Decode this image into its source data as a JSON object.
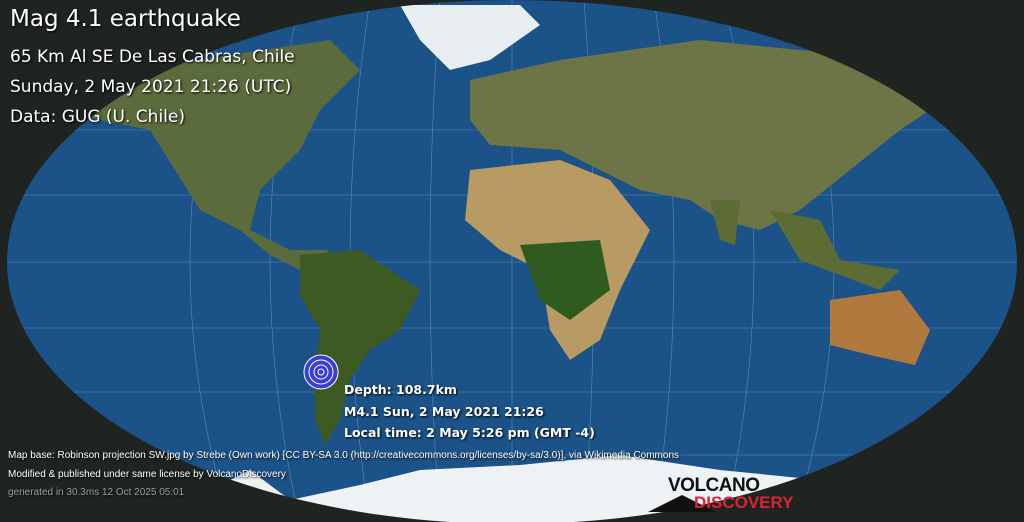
{
  "header": {
    "title": "Mag 4.1 earthquake",
    "location": "65 Km Al SE De Las Cabras, Chile",
    "datetime": "Sunday,  2 May 2021 21:26 (UTC)",
    "data_source": "Data: GUG (U. Chile)"
  },
  "marker": {
    "depth": "Depth: 108.7km",
    "magnitude_time": "M4.1 Sun,  2 May 2021 21:26",
    "local_time": "Local time: 2 May 5:26 pm (GMT -4)",
    "icon": "concentric-circles-epicenter-icon"
  },
  "credits": {
    "map_base": "Map base: Robinson projection SW.jpg by Strebe (Own work) [CC BY-SA 3.0 (http://creativecommons.org/licenses/by-sa/3.0)], via Wikimedia Commons",
    "modified": "Modified & published under same license by VolcanoDiscovery",
    "generated": "generated in 30.3ms 12 Oct 2025 05:01"
  },
  "logo": {
    "line1": "VOLCANO",
    "line2": "DISCOVERY"
  },
  "colors": {
    "ocean": "#1b5287",
    "background": "#1f2421",
    "logo_red": "#d6243a",
    "marker": "#3a3fd0"
  }
}
